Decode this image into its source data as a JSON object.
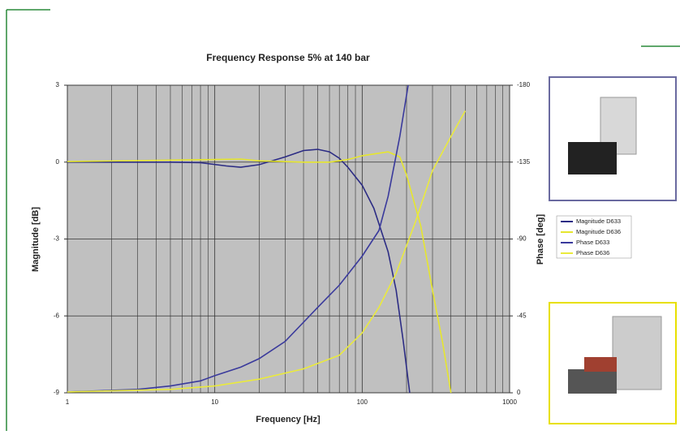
{
  "chart_data": {
    "type": "line",
    "title": "Frequency Response 5% at 140 bar",
    "x_label": "Frequency [Hz]",
    "y_label": "Magnitude [dB]",
    "y2_label": "Phase [deg]",
    "xlog": true,
    "xlim": [
      1,
      1000
    ],
    "xticks": [
      1,
      10,
      100,
      1000
    ],
    "ylim": [
      -9,
      3
    ],
    "yticks": [
      3,
      0,
      -3,
      -6,
      -9
    ],
    "y2lim": [
      0,
      -180
    ],
    "y2ticks": [
      -180,
      -135,
      -90,
      -45,
      0
    ],
    "grid": true,
    "legend": "right",
    "series": [
      {
        "name": "Magnitude D633",
        "color": "#2c2c84",
        "axis": "y",
        "x": [
          1,
          5,
          8,
          12,
          15,
          20,
          30,
          40,
          50,
          60,
          70,
          80,
          100,
          120,
          150,
          170,
          190,
          210
        ],
        "values": [
          0,
          0,
          -0.02,
          -0.15,
          -0.2,
          -0.1,
          0.2,
          0.45,
          0.5,
          0.4,
          0.15,
          -0.2,
          -0.9,
          -1.8,
          -3.5,
          -5,
          -7,
          -9
        ]
      },
      {
        "name": "Magnitude D636",
        "color": "#e6e62e",
        "axis": "y",
        "x": [
          1,
          10,
          15,
          20,
          40,
          60,
          80,
          100,
          150,
          180,
          200,
          250,
          300,
          350,
          400
        ],
        "values": [
          0.02,
          0.1,
          0.12,
          0.05,
          0,
          0,
          0.1,
          0.25,
          0.4,
          0.2,
          -0.5,
          -2.5,
          -5,
          -7,
          -9
        ]
      },
      {
        "name": "Phase D633",
        "color": "#3a3a9c",
        "axis": "y2",
        "x": [
          1,
          3,
          5,
          8,
          10,
          15,
          20,
          30,
          50,
          70,
          100,
          130,
          150,
          180,
          205
        ],
        "values": [
          -0.5,
          -2,
          -4,
          -7,
          -10,
          -15,
          -20,
          -30,
          -50,
          -63,
          -80,
          -95,
          -115,
          -150,
          -180
        ]
      },
      {
        "name": "Phase D636",
        "color": "#eaea3c",
        "axis": "y2",
        "x": [
          1,
          5,
          10,
          20,
          40,
          70,
          100,
          130,
          170,
          230,
          300,
          400,
          500
        ],
        "values": [
          -0.5,
          -2,
          -4,
          -8,
          -14,
          -22,
          -35,
          -50,
          -70,
          -100,
          -130,
          -150,
          -165
        ]
      }
    ]
  }
}
